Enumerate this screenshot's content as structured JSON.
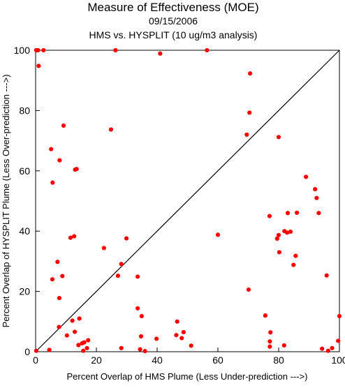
{
  "chart_data": {
    "type": "scatter",
    "title": "Measure of Effectiveness (MOE)",
    "subtitle_date": "09/15/2006",
    "subtitle_analysis": "HMS vs. HYSPLIT  (10 ug/m3 analysis)",
    "xlabel": "Percent Overlap of HMS Plume (Less Under-prediction --->)",
    "ylabel": "Percent Overlap of HYSPLIT Plume (Less Over-prediction --->)",
    "xlim": [
      0,
      100
    ],
    "ylim": [
      0,
      100
    ],
    "x_ticks": [
      "0",
      "20",
      "40",
      "60",
      "80",
      "100"
    ],
    "y_ticks": [
      "0",
      "20",
      "40",
      "60",
      "80",
      "100"
    ],
    "grid": false,
    "reference_line": "y = x",
    "colors": {
      "points": "#ff0000",
      "axes": "#000000"
    },
    "points": [
      {
        "x": 0.2,
        "y": 100
      },
      {
        "x": 0.8,
        "y": 100
      },
      {
        "x": 2.6,
        "y": 100
      },
      {
        "x": 26.3,
        "y": 100
      },
      {
        "x": 56.4,
        "y": 100
      },
      {
        "x": 1.0,
        "y": 94.8
      },
      {
        "x": 41.0,
        "y": 98.9
      },
      {
        "x": 70.6,
        "y": 92.3
      },
      {
        "x": 70.4,
        "y": 79.3
      },
      {
        "x": 9.2,
        "y": 75.0
      },
      {
        "x": 24.8,
        "y": 73.7
      },
      {
        "x": 69.5,
        "y": 72.0
      },
      {
        "x": 80.0,
        "y": 71.2
      },
      {
        "x": 5.1,
        "y": 67.2
      },
      {
        "x": 7.9,
        "y": 63.5
      },
      {
        "x": 13.0,
        "y": 60.4
      },
      {
        "x": 13.5,
        "y": 60.6
      },
      {
        "x": 5.6,
        "y": 56.1
      },
      {
        "x": 89.0,
        "y": 58.0
      },
      {
        "x": 92.0,
        "y": 53.9
      },
      {
        "x": 92.5,
        "y": 51.0
      },
      {
        "x": 83.0,
        "y": 46.0
      },
      {
        "x": 86.0,
        "y": 46.1
      },
      {
        "x": 93.2,
        "y": 46.0
      },
      {
        "x": 77.0,
        "y": 45.0
      },
      {
        "x": 60.0,
        "y": 38.8
      },
      {
        "x": 11.5,
        "y": 37.8
      },
      {
        "x": 12.7,
        "y": 38.3
      },
      {
        "x": 29.9,
        "y": 37.6
      },
      {
        "x": 22.5,
        "y": 34.4
      },
      {
        "x": 79.5,
        "y": 37.5
      },
      {
        "x": 80.0,
        "y": 38.7
      },
      {
        "x": 81.9,
        "y": 40.0
      },
      {
        "x": 82.8,
        "y": 39.5
      },
      {
        "x": 83.9,
        "y": 39.8
      },
      {
        "x": 80.2,
        "y": 33.0
      },
      {
        "x": 85.6,
        "y": 31.8
      },
      {
        "x": 84.9,
        "y": 28.8
      },
      {
        "x": 7.2,
        "y": 29.8
      },
      {
        "x": 28.2,
        "y": 29.1
      },
      {
        "x": 27.1,
        "y": 25.2
      },
      {
        "x": 8.8,
        "y": 25.1
      },
      {
        "x": 5.5,
        "y": 24.0
      },
      {
        "x": 95.8,
        "y": 25.3
      },
      {
        "x": 70.1,
        "y": 20.6
      },
      {
        "x": 7.8,
        "y": 17.8
      },
      {
        "x": 33.6,
        "y": 24.9
      },
      {
        "x": 33.6,
        "y": 14.4
      },
      {
        "x": 34.9,
        "y": 11.8
      },
      {
        "x": 14.4,
        "y": 11.0
      },
      {
        "x": 12.1,
        "y": 10.3
      },
      {
        "x": 46.6,
        "y": 10.0
      },
      {
        "x": 75.6,
        "y": 12.0
      },
      {
        "x": 100.0,
        "y": 11.8
      },
      {
        "x": 7.7,
        "y": 8.2
      },
      {
        "x": 12.9,
        "y": 6.6
      },
      {
        "x": 10.3,
        "y": 5.4
      },
      {
        "x": 48.7,
        "y": 6.5
      },
      {
        "x": 46.3,
        "y": 5.5
      },
      {
        "x": 34.7,
        "y": 5.1
      },
      {
        "x": 48.1,
        "y": 4.5
      },
      {
        "x": 77.3,
        "y": 6.4
      },
      {
        "x": 39.8,
        "y": 4.3
      },
      {
        "x": 77.1,
        "y": 3.4
      },
      {
        "x": 99.6,
        "y": 3.6
      },
      {
        "x": 17.3,
        "y": 3.8
      },
      {
        "x": 16.0,
        "y": 3.1
      },
      {
        "x": 15.3,
        "y": 2.8
      },
      {
        "x": 14.1,
        "y": 2.2
      },
      {
        "x": 51.2,
        "y": 2.0
      },
      {
        "x": 77.1,
        "y": 1.7
      },
      {
        "x": 81.8,
        "y": 2.1
      },
      {
        "x": 16.9,
        "y": 1.2
      },
      {
        "x": 28.2,
        "y": 1.2
      },
      {
        "x": 34.4,
        "y": 0.8
      },
      {
        "x": 4.5,
        "y": 0.6
      },
      {
        "x": 15.7,
        "y": 0.3
      },
      {
        "x": 36.0,
        "y": 0.2
      },
      {
        "x": 0.2,
        "y": 0.3
      },
      {
        "x": 94.3,
        "y": 1.0
      },
      {
        "x": 97.6,
        "y": 1.2
      },
      {
        "x": 96.3,
        "y": 0.3
      }
    ]
  }
}
